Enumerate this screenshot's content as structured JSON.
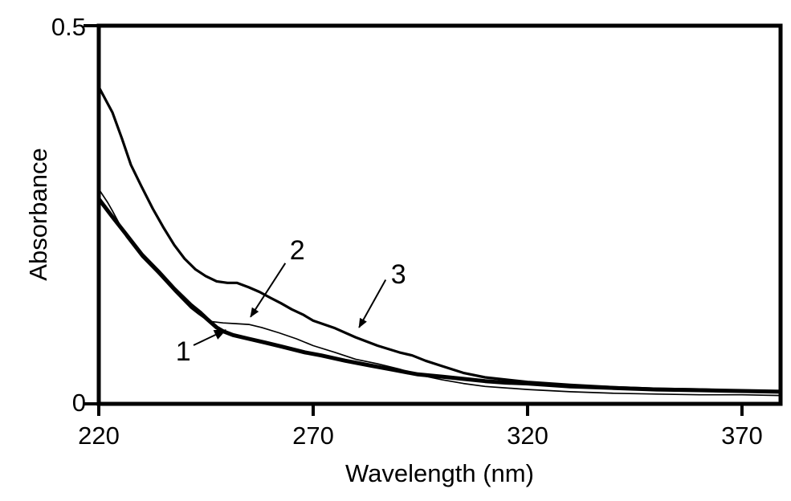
{
  "figure": {
    "background": "#ffffff",
    "line_color": "#000000"
  },
  "chart_data": {
    "type": "line",
    "title": "",
    "xlabel": "Wavelength (nm)",
    "ylabel": "Absorbance",
    "xlim": [
      220,
      379
    ],
    "ylim": [
      0,
      0.5
    ],
    "x_ticks": [
      220,
      270,
      320,
      370
    ],
    "x_tick_labels": [
      "220",
      "270",
      "320",
      "370"
    ],
    "y_ticks": [
      0,
      0.5
    ],
    "y_tick_labels": [
      "0",
      "0.5"
    ],
    "grid": false,
    "frame": "full-box",
    "legend_position": "none (curves labeled by numbered arrows)",
    "series": [
      {
        "name": "1",
        "style": "thick solid",
        "color": "#000000",
        "stroke_width": 5,
        "points": [
          [
            220,
            0.271
          ],
          [
            223.2,
            0.247
          ],
          [
            226.4,
            0.224
          ],
          [
            230.1,
            0.197
          ],
          [
            233.9,
            0.175
          ],
          [
            237.6,
            0.152
          ],
          [
            241.4,
            0.131
          ],
          [
            243.8,
            0.12
          ],
          [
            245.1,
            0.113
          ],
          [
            247.5,
            0.101
          ],
          [
            249.0,
            0.096
          ],
          [
            251.3,
            0.091
          ],
          [
            255.0,
            0.086
          ],
          [
            258.8,
            0.081
          ],
          [
            262.5,
            0.076
          ],
          [
            268.1,
            0.068
          ],
          [
            271.9,
            0.064
          ],
          [
            277.5,
            0.057
          ],
          [
            283.1,
            0.051
          ],
          [
            288.7,
            0.045
          ],
          [
            294.4,
            0.039
          ],
          [
            300.0,
            0.036
          ],
          [
            305.0,
            0.033
          ],
          [
            310.1,
            0.03
          ],
          [
            315.0,
            0.028
          ],
          [
            320.0,
            0.027
          ],
          [
            329.9,
            0.023
          ],
          [
            340.1,
            0.021
          ],
          [
            350.0,
            0.019
          ],
          [
            360.1,
            0.018
          ],
          [
            370.0,
            0.017
          ],
          [
            379.0,
            0.016
          ]
        ]
      },
      {
        "name": "2",
        "style": "thin solid",
        "color": "#000000",
        "stroke_width": 1.7,
        "points": [
          [
            220,
            0.284
          ],
          [
            222.1,
            0.266
          ],
          [
            223.2,
            0.255
          ],
          [
            226.4,
            0.221
          ],
          [
            230.1,
            0.194
          ],
          [
            233.9,
            0.172
          ],
          [
            237.6,
            0.149
          ],
          [
            241.4,
            0.127
          ],
          [
            243.2,
            0.119
          ],
          [
            244.4,
            0.114
          ],
          [
            246.0,
            0.109
          ],
          [
            249.0,
            0.107
          ],
          [
            252.0,
            0.106
          ],
          [
            255.0,
            0.105
          ],
          [
            258.0,
            0.101
          ],
          [
            262.0,
            0.094
          ],
          [
            266.1,
            0.086
          ],
          [
            270.0,
            0.077
          ],
          [
            275.1,
            0.068
          ],
          [
            279.9,
            0.059
          ],
          [
            285.0,
            0.053
          ],
          [
            290.1,
            0.046
          ],
          [
            294.9,
            0.038
          ],
          [
            300.0,
            0.032
          ],
          [
            305.0,
            0.027
          ],
          [
            310.1,
            0.023
          ],
          [
            320.0,
            0.019
          ],
          [
            329.9,
            0.016
          ],
          [
            340.1,
            0.014
          ],
          [
            350.0,
            0.013
          ],
          [
            360.1,
            0.012
          ],
          [
            370.0,
            0.012
          ],
          [
            379.0,
            0.011
          ]
        ]
      },
      {
        "name": "3",
        "style": "medium solid",
        "color": "#000000",
        "stroke_width": 3.2,
        "points": [
          [
            220,
            0.419
          ],
          [
            223.2,
            0.385
          ],
          [
            225.4,
            0.351
          ],
          [
            227.5,
            0.316
          ],
          [
            229.9,
            0.288
          ],
          [
            232.6,
            0.258
          ],
          [
            235.0,
            0.234
          ],
          [
            237.6,
            0.21
          ],
          [
            240.0,
            0.192
          ],
          [
            242.5,
            0.178
          ],
          [
            244.9,
            0.169
          ],
          [
            247.5,
            0.162
          ],
          [
            250.0,
            0.16
          ],
          [
            252.2,
            0.16
          ],
          [
            255.0,
            0.154
          ],
          [
            257.5,
            0.148
          ],
          [
            260.1,
            0.14
          ],
          [
            262.5,
            0.133
          ],
          [
            265.0,
            0.125
          ],
          [
            267.6,
            0.118
          ],
          [
            270.0,
            0.11
          ],
          [
            275.1,
            0.1
          ],
          [
            279.9,
            0.088
          ],
          [
            285.0,
            0.077
          ],
          [
            290.1,
            0.068
          ],
          [
            293.1,
            0.064
          ],
          [
            296.2,
            0.057
          ],
          [
            300.0,
            0.05
          ],
          [
            305.0,
            0.041
          ],
          [
            310.1,
            0.035
          ],
          [
            315.0,
            0.032
          ],
          [
            320.0,
            0.029
          ],
          [
            329.9,
            0.025
          ],
          [
            340.1,
            0.022
          ],
          [
            350.0,
            0.02
          ],
          [
            360.1,
            0.019
          ],
          [
            370.0,
            0.017
          ],
          [
            379.0,
            0.016
          ]
        ]
      }
    ],
    "annotations": [
      {
        "label": "1",
        "label_pos": [
          239.7,
          0.07
        ],
        "arrow_from": [
          242.1,
          0.0775
        ],
        "arrow_to": [
          249.6,
          0.0977
        ],
        "arrow_style": "big-solid-head"
      },
      {
        "label": "2",
        "label_pos": [
          266.3,
          0.204
        ],
        "arrow_from": [
          263.5,
          0.186
        ],
        "arrow_to": [
          255.4,
          0.115
        ],
        "arrow_style": "solid-head"
      },
      {
        "label": "3",
        "label_pos": [
          289.9,
          0.172
        ],
        "arrow_from": [
          286.9,
          0.164
        ],
        "arrow_to": [
          280.7,
          0.101
        ],
        "arrow_style": "solid-head"
      }
    ]
  }
}
